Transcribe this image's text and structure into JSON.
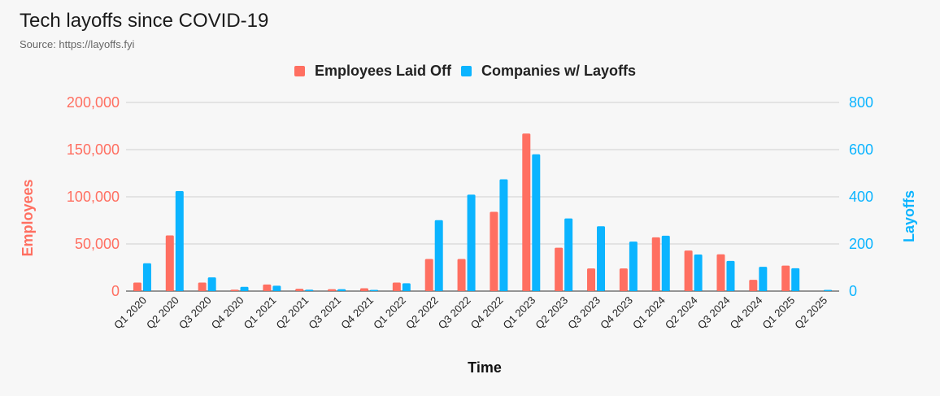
{
  "header": {
    "title": "Tech layoffs since COVID-19",
    "subtitle": "Source: https://layoffs.fyi"
  },
  "chart_data": {
    "type": "bar",
    "title": "Tech layoffs since COVID-19",
    "subtitle": "Source: https://layoffs.fyi",
    "xlabel": "Time",
    "ylabel_left": "Employees",
    "ylabel_right": "Layoffs",
    "categories": [
      "Q1 2020",
      "Q2 2020",
      "Q3 2020",
      "Q4 2020",
      "Q1 2021",
      "Q2 2021",
      "Q3 2021",
      "Q4 2021",
      "Q1 2022",
      "Q2 2022",
      "Q3 2022",
      "Q4 2022",
      "Q1 2023",
      "Q2 2023",
      "Q3 2023",
      "Q4 2023",
      "Q1 2024",
      "Q2 2024",
      "Q3 2024",
      "Q4 2024",
      "Q1 2025",
      "Q2 2025"
    ],
    "ylim_left": [
      0,
      200000
    ],
    "ylim_right": [
      0,
      800
    ],
    "yticks_left": [
      "0",
      "50,000",
      "100,000",
      "150,000",
      "200,000"
    ],
    "yticks_right": [
      "0",
      "200",
      "400",
      "600",
      "800"
    ],
    "grid": true,
    "legend_position": "top-center",
    "series": [
      {
        "name": "Employees Laid Off",
        "axis": "left",
        "color": "#ff6f61",
        "values": [
          9000,
          59000,
          9000,
          1500,
          7000,
          2500,
          2000,
          3000,
          9000,
          34000,
          34000,
          84000,
          167000,
          46000,
          24000,
          24000,
          57000,
          43000,
          39000,
          12000,
          27000,
          0
        ]
      },
      {
        "name": "Companies w/ Layoffs",
        "axis": "right",
        "color": "#0bb4ff",
        "values": [
          118,
          424,
          58,
          18,
          23,
          6,
          8,
          5,
          33,
          301,
          409,
          474,
          580,
          308,
          275,
          210,
          235,
          155,
          128,
          103,
          97,
          5
        ]
      }
    ]
  }
}
